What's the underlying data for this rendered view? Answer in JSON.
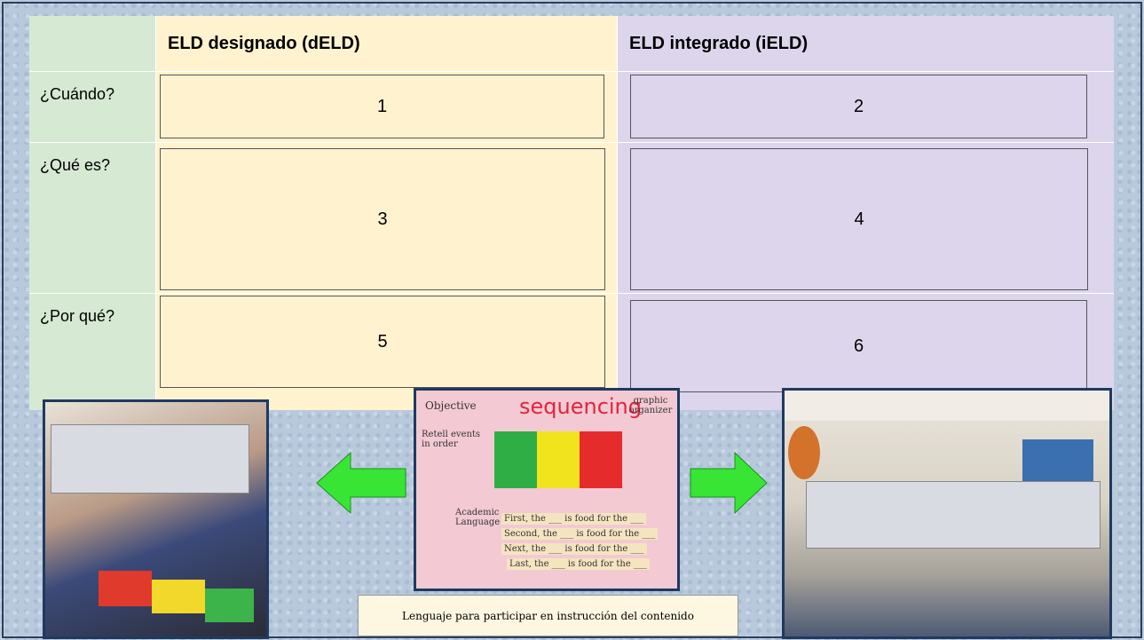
{
  "table": {
    "header": [
      "ELD designado (dELD)",
      "ELD integrado (iELD)"
    ],
    "rows": [
      {
        "label": "¿Cuándo?",
        "cells": [
          1,
          2
        ]
      },
      {
        "label": "¿Qué es?",
        "cells": [
          3,
          4
        ]
      },
      {
        "label": "¿Por qué?",
        "cells": [
          5,
          6
        ]
      }
    ]
  },
  "poster": {
    "title": "sequencing",
    "objective": "Objective",
    "organizer": "graphic organizer",
    "goal": "Retell events in order",
    "language": "Academic Language",
    "frames": [
      "First, the ___ is food for the ___",
      "Second, the ___ is food for the ___",
      "Next, the ___ is food for the ___",
      "Last, the ___ is food for the ___"
    ]
  },
  "caption": "Lenguaje para participar en instrucción del contenido"
}
